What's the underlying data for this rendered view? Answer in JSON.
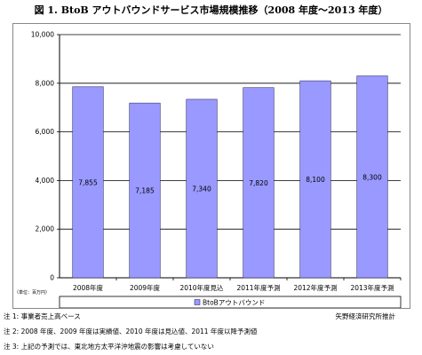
{
  "title": "図 1. BtoB アウトバウンドサービス市場規模推移（2008 年度～2013 年度）",
  "unit_label": "（単位：百万円）",
  "notes": [
    "注 1: 事業者売上高ベース",
    "注 2: 2008 年度、2009 年度は実績値、2010 年度は見込値、2011 年度以降予測値",
    "注 3: 上記の予測では、東北地方太平洋沖地震の影響は考慮していない"
  ],
  "source": "矢野経済研究所推計",
  "colors": {
    "bar": "#9999ff",
    "bar_stroke": "#333366",
    "grid": "#000000"
  },
  "chart_data": {
    "type": "bar",
    "categories": [
      "2008年度",
      "2009年度",
      "2010年度見込",
      "2011年度予測",
      "2012年度予測",
      "2013年度予測"
    ],
    "series": [
      {
        "name": "BtoBアウトバウンド",
        "values": [
          7855,
          7185,
          7340,
          7820,
          8100,
          8300
        ]
      }
    ],
    "data_labels": [
      "7,855",
      "7,185",
      "7,340",
      "7,820",
      "8,100",
      "8,300"
    ],
    "y_ticks": [
      "0",
      "2,000",
      "4,000",
      "6,000",
      "8,000",
      "10,000"
    ],
    "ylim": [
      0,
      10000
    ],
    "grid": true,
    "legend": "bottom",
    "xlabel": "",
    "ylabel": ""
  }
}
